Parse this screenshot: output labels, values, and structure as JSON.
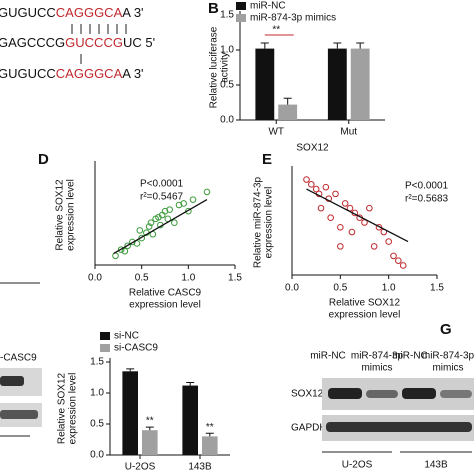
{
  "sequences": [
    {
      "parts": [
        "GUGUCC",
        "CAGGGCA",
        "A 3'"
      ]
    },
    {
      "parts": [
        "GAGCCCG",
        "GUCCCG",
        "UC 5'"
      ]
    },
    {
      "parts": [
        "GUGUCC",
        "CAGGGCA",
        "A 3'"
      ]
    }
  ],
  "blot_left": {
    "label": "-CASC9"
  },
  "blot_g": {
    "panel_label": "G",
    "lanes": [
      "miR-NC",
      "miR-874-3p",
      "mimics",
      "miR-NC",
      "miR-874-3p",
      "mimics"
    ],
    "rows": [
      "SOX12",
      "GAPDH"
    ],
    "groups": [
      "U-2OS",
      "143B"
    ]
  },
  "chart_data": [
    {
      "type": "bar",
      "panel_label": "B",
      "categories": [
        "WT",
        "Mut"
      ],
      "x_label": "SOX12",
      "y_label": [
        "Relative luciferase",
        "activity"
      ],
      "series": [
        {
          "name": "miR-NC",
          "color": "#111111",
          "values": [
            1.02,
            1.02
          ],
          "errors": [
            0.08,
            0.08
          ]
        },
        {
          "name": "miR-874-3p mimics",
          "color": "#a0a0a0",
          "values": [
            0.22,
            1.02
          ],
          "errors": [
            0.09,
            0.08
          ]
        }
      ],
      "annotations": [
        "**"
      ],
      "ylim": [
        0,
        1.5
      ],
      "yticks": [
        {
          "value": 0,
          "label": "0.0"
        },
        0.5,
        {
          "value": 1,
          "label": "1.0"
        },
        1.5
      ]
    },
    {
      "type": "scatter",
      "panel_label": "D",
      "color": "#3a9a3a",
      "x_label": "Relative CASC9",
      "x_label2": "expression level",
      "y_label": [
        "Relative SOX12",
        "expression level"
      ],
      "annotations": [
        "P<0.0001",
        "r²=0.5467"
      ],
      "x": [
        0.22,
        0.28,
        0.32,
        0.35,
        0.4,
        0.45,
        0.48,
        0.5,
        0.55,
        0.58,
        0.6,
        0.62,
        0.65,
        0.68,
        0.7,
        0.72,
        0.75,
        0.78,
        0.8,
        0.85,
        0.9,
        0.95,
        1.0,
        1.05,
        1.2
      ],
      "y": [
        0.12,
        0.2,
        0.18,
        0.25,
        0.3,
        0.28,
        0.45,
        0.35,
        0.42,
        0.5,
        0.55,
        0.4,
        0.6,
        0.62,
        0.52,
        0.65,
        0.7,
        0.6,
        0.72,
        0.55,
        0.78,
        0.8,
        0.7,
        0.85,
        0.95
      ],
      "trendline": {
        "x": [
          0.2,
          1.2
        ],
        "y": [
          0.15,
          0.85
        ]
      },
      "xlim": [
        0,
        1.5
      ],
      "ylim": [
        0,
        1.3
      ],
      "xticks": [
        {
          "value": 0,
          "label": "0.0"
        },
        0.5,
        {
          "value": 1,
          "label": "1.0"
        },
        1.5
      ]
    },
    {
      "type": "scatter",
      "panel_label": "E",
      "color": "#c0282d",
      "x_label": "Relative SOX12",
      "x_label2": "expression level",
      "y_label": [
        "Relative miR-874-3p",
        "expression level"
      ],
      "annotations": [
        "P<0.0001",
        "r²=0.5683"
      ],
      "x": [
        0.15,
        0.2,
        0.25,
        0.28,
        0.3,
        0.35,
        0.38,
        0.4,
        0.45,
        0.5,
        0.5,
        0.55,
        0.6,
        0.62,
        0.65,
        0.7,
        0.75,
        0.8,
        0.85,
        0.9,
        0.95,
        1.0,
        1.05,
        1.1,
        1.15
      ],
      "y": [
        1.0,
        0.95,
        0.9,
        0.85,
        0.7,
        0.92,
        0.8,
        0.6,
        0.85,
        0.5,
        0.3,
        0.75,
        0.7,
        0.45,
        0.65,
        0.6,
        0.55,
        0.7,
        0.3,
        0.5,
        0.45,
        0.35,
        0.2,
        0.15,
        0.1
      ],
      "trendline": {
        "x": [
          0.15,
          1.2
        ],
        "y": [
          0.9,
          0.35
        ]
      },
      "xlim": [
        0,
        1.5
      ],
      "ylim": [
        0,
        1.1
      ],
      "xticks": [
        {
          "value": 0,
          "label": "0.0"
        },
        0.5,
        {
          "value": 1,
          "label": "1.0"
        },
        1.5
      ]
    },
    {
      "type": "bar",
      "categories": [
        "U-2OS",
        "143B"
      ],
      "y_label": [
        "Relative SOX12",
        "expression level"
      ],
      "series": [
        {
          "name": "si-NC",
          "color": "#111111",
          "values": [
            1.35,
            1.12
          ],
          "errors": [
            0.04,
            0.05
          ]
        },
        {
          "name": "si-CASC9",
          "color": "#a0a0a0",
          "values": [
            0.4,
            0.3
          ],
          "errors": [
            0.05,
            0.05
          ]
        }
      ],
      "annotations": [
        "**",
        "**"
      ],
      "ylim": [
        0,
        1.5
      ],
      "yticks": [
        {
          "value": 0,
          "label": "0.0"
        },
        0.5,
        {
          "value": 1,
          "label": "1.0"
        },
        1.5
      ]
    }
  ]
}
